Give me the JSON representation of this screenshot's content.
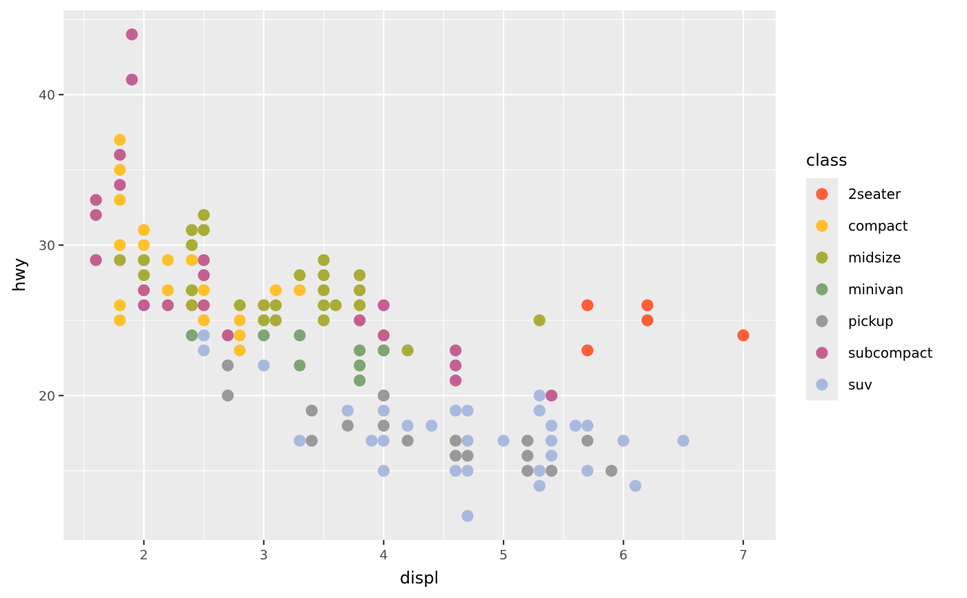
{
  "chart_data": {
    "type": "scatter",
    "title": "",
    "xlabel": "displ",
    "ylabel": "hwy",
    "xlim": [
      1.33,
      7.27
    ],
    "ylim": [
      10.4,
      45.6
    ],
    "x_ticks": [
      2,
      3,
      4,
      5,
      6,
      7
    ],
    "y_ticks": [
      20,
      30,
      40
    ],
    "grid": true,
    "legend": {
      "title": "class",
      "placement": "right"
    },
    "series": [
      {
        "name": "2seater",
        "color": "#FF5E36",
        "points": [
          [
            5.7,
            26
          ],
          [
            5.7,
            23
          ],
          [
            6.2,
            26
          ],
          [
            6.2,
            25
          ],
          [
            7.0,
            24
          ]
        ]
      },
      {
        "name": "compact",
        "color": "#FFC02B",
        "points": [
          [
            1.8,
            37
          ],
          [
            1.8,
            35
          ],
          [
            1.8,
            33
          ],
          [
            1.8,
            30
          ],
          [
            1.8,
            26
          ],
          [
            1.8,
            25
          ],
          [
            2.0,
            31
          ],
          [
            2.0,
            30
          ],
          [
            2.0,
            29
          ],
          [
            2.2,
            29
          ],
          [
            2.2,
            27
          ],
          [
            2.4,
            31
          ],
          [
            2.4,
            29
          ],
          [
            2.4,
            27
          ],
          [
            2.5,
            27
          ],
          [
            2.5,
            25
          ],
          [
            2.8,
            25
          ],
          [
            2.8,
            24
          ],
          [
            2.8,
            23
          ],
          [
            3.0,
            26
          ],
          [
            3.1,
            27
          ],
          [
            3.3,
            27
          ]
        ]
      },
      {
        "name": "midsize",
        "color": "#A9AC38",
        "points": [
          [
            1.8,
            29
          ],
          [
            2.0,
            29
          ],
          [
            2.0,
            28
          ],
          [
            2.4,
            31
          ],
          [
            2.4,
            30
          ],
          [
            2.4,
            27
          ],
          [
            2.4,
            26
          ],
          [
            2.5,
            32
          ],
          [
            2.5,
            31
          ],
          [
            2.8,
            26
          ],
          [
            3.0,
            26
          ],
          [
            3.0,
            25
          ],
          [
            3.1,
            26
          ],
          [
            3.1,
            25
          ],
          [
            3.3,
            28
          ],
          [
            3.5,
            29
          ],
          [
            3.5,
            28
          ],
          [
            3.5,
            27
          ],
          [
            3.5,
            26
          ],
          [
            3.5,
            25
          ],
          [
            3.6,
            26
          ],
          [
            3.8,
            28
          ],
          [
            3.8,
            27
          ],
          [
            3.8,
            26
          ],
          [
            4.0,
            23
          ],
          [
            4.2,
            23
          ],
          [
            5.3,
            25
          ]
        ]
      },
      {
        "name": "minivan",
        "color": "#7EA574",
        "points": [
          [
            2.4,
            24
          ],
          [
            3.0,
            24
          ],
          [
            3.3,
            24
          ],
          [
            3.3,
            22
          ],
          [
            3.8,
            23
          ],
          [
            3.8,
            22
          ],
          [
            3.8,
            21
          ],
          [
            4.0,
            23
          ]
        ]
      },
      {
        "name": "pickup",
        "color": "#999999",
        "points": [
          [
            2.7,
            22
          ],
          [
            2.7,
            20
          ],
          [
            3.4,
            19
          ],
          [
            3.4,
            17
          ],
          [
            3.7,
            18
          ],
          [
            4.0,
            20
          ],
          [
            4.0,
            18
          ],
          [
            4.2,
            17
          ],
          [
            4.6,
            17
          ],
          [
            4.6,
            16
          ],
          [
            4.7,
            16
          ],
          [
            5.2,
            17
          ],
          [
            5.2,
            16
          ],
          [
            5.2,
            15
          ],
          [
            5.4,
            15
          ],
          [
            5.7,
            17
          ],
          [
            5.9,
            15
          ]
        ]
      },
      {
        "name": "subcompact",
        "color": "#C4608F",
        "points": [
          [
            1.6,
            33
          ],
          [
            1.6,
            32
          ],
          [
            1.6,
            29
          ],
          [
            1.8,
            36
          ],
          [
            1.8,
            34
          ],
          [
            1.9,
            44
          ],
          [
            1.9,
            41
          ],
          [
            2.0,
            27
          ],
          [
            2.0,
            26
          ],
          [
            2.2,
            26
          ],
          [
            2.5,
            29
          ],
          [
            2.5,
            28
          ],
          [
            2.5,
            26
          ],
          [
            2.7,
            24
          ],
          [
            3.8,
            25
          ],
          [
            4.0,
            26
          ],
          [
            4.0,
            24
          ],
          [
            4.6,
            23
          ],
          [
            4.6,
            22
          ],
          [
            4.6,
            21
          ],
          [
            5.4,
            20
          ]
        ]
      },
      {
        "name": "suv",
        "color": "#A8B9DD",
        "points": [
          [
            2.5,
            24
          ],
          [
            2.5,
            23
          ],
          [
            3.0,
            22
          ],
          [
            3.3,
            17
          ],
          [
            3.7,
            19
          ],
          [
            3.9,
            17
          ],
          [
            4.0,
            19
          ],
          [
            4.0,
            17
          ],
          [
            4.0,
            15
          ],
          [
            4.2,
            18
          ],
          [
            4.4,
            18
          ],
          [
            4.6,
            19
          ],
          [
            4.6,
            15
          ],
          [
            4.7,
            19
          ],
          [
            4.7,
            17
          ],
          [
            4.7,
            15
          ],
          [
            4.7,
            12
          ],
          [
            5.0,
            17
          ],
          [
            5.3,
            20
          ],
          [
            5.3,
            19
          ],
          [
            5.3,
            15
          ],
          [
            5.3,
            14
          ],
          [
            5.4,
            18
          ],
          [
            5.4,
            17
          ],
          [
            5.4,
            16
          ],
          [
            5.6,
            18
          ],
          [
            5.7,
            18
          ],
          [
            5.7,
            15
          ],
          [
            6.0,
            17
          ],
          [
            6.1,
            14
          ],
          [
            6.5,
            17
          ]
        ]
      }
    ]
  }
}
